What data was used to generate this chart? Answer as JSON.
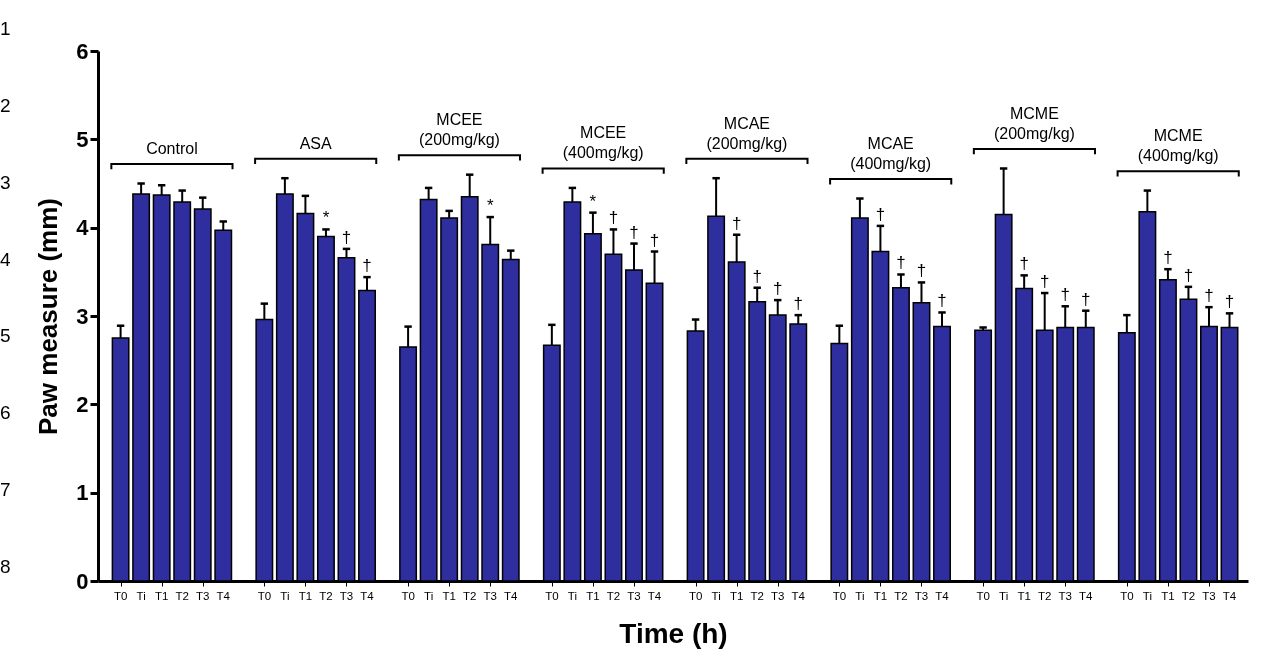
{
  "chart_data": {
    "type": "bar",
    "xlabel": "Time (h)",
    "ylabel": "Paw measure (mm)",
    "ylim": [
      0,
      6
    ],
    "yticks": [
      0,
      1,
      2,
      3,
      4,
      5,
      6
    ],
    "categories": [
      "Control",
      "ASA",
      "MCEE (200mg/kg)",
      "MCEE (400mg/kg)",
      "MCAE (200mg/kg)",
      "MCAE (400mg/kg)",
      "MCME (200mg/kg)",
      "MCME (400mg/kg)"
    ],
    "series": [
      {
        "name": "T0",
        "color": "#2e2e9e",
        "values": [
          2.75,
          2.96,
          2.65,
          2.67,
          2.83,
          2.69,
          2.84,
          2.81
        ],
        "errors": [
          [
            2.75,
            2.89
          ],
          [
            2.96,
            3.14
          ],
          [
            2.65,
            2.88
          ],
          [
            2.67,
            2.9
          ],
          [
            2.83,
            2.96
          ],
          [
            2.69,
            2.89
          ],
          [
            2.84,
            2.87
          ],
          [
            2.81,
            3.01
          ]
        ],
        "value_labels": [
          null,
          null,
          null,
          null,
          null,
          null,
          null,
          null
        ]
      },
      {
        "name": "Ti",
        "color": "#2e2e9e",
        "values": [
          4.38,
          4.38,
          4.32,
          4.29,
          4.13,
          4.11,
          4.15,
          4.18
        ],
        "errors": [
          [
            4.38,
            4.5
          ],
          [
            4.38,
            4.56
          ],
          [
            4.32,
            4.45
          ],
          [
            4.29,
            4.45
          ],
          [
            4.13,
            4.56
          ],
          [
            4.11,
            4.33
          ],
          [
            4.15,
            4.67
          ],
          [
            4.18,
            4.42
          ]
        ],
        "value_labels": [
          null,
          null,
          null,
          null,
          null,
          null,
          null,
          null
        ]
      },
      {
        "name": "T1",
        "color": "#2e2e9e",
        "values": [
          4.37,
          4.16,
          4.11,
          3.93,
          3.61,
          3.73,
          3.31,
          3.41
        ],
        "errors": [
          [
            4.37,
            4.48
          ],
          [
            4.16,
            4.36
          ],
          [
            4.11,
            4.19
          ],
          [
            3.93,
            4.17
          ],
          [
            3.61,
            3.92
          ],
          [
            3.73,
            4.02
          ],
          [
            3.31,
            3.46
          ],
          [
            3.41,
            3.53
          ]
        ],
        "value_labels": [
          null,
          null,
          null,
          "*",
          "†",
          "†",
          "†",
          "†"
        ]
      },
      {
        "name": "T2",
        "color": "#2e2e9e",
        "values": [
          4.29,
          3.9,
          4.35,
          3.7,
          3.16,
          3.32,
          2.84,
          3.19
        ],
        "errors": [
          [
            4.29,
            4.42
          ],
          [
            3.9,
            3.98
          ],
          [
            4.35,
            4.6
          ],
          [
            3.7,
            3.98
          ],
          [
            3.16,
            3.32
          ],
          [
            3.32,
            3.47
          ],
          [
            2.84,
            3.26
          ],
          [
            3.19,
            3.33
          ]
        ],
        "value_labels": [
          null,
          "*",
          null,
          "†",
          "†",
          "†",
          "†",
          "†"
        ]
      },
      {
        "name": "T3",
        "color": "#2e2e9e",
        "values": [
          4.21,
          3.66,
          3.81,
          3.52,
          3.01,
          3.15,
          2.87,
          2.88
        ],
        "errors": [
          [
            4.21,
            4.34
          ],
          [
            3.66,
            3.76
          ],
          [
            3.81,
            4.12
          ],
          [
            3.52,
            3.82
          ],
          [
            3.01,
            3.18
          ],
          [
            3.15,
            3.38
          ],
          [
            2.87,
            3.11
          ],
          [
            2.88,
            3.1
          ]
        ],
        "value_labels": [
          null,
          "†",
          "*",
          "†",
          "†",
          "†",
          "†",
          "†"
        ]
      },
      {
        "name": "T4",
        "color": "#2e2e9e",
        "values": [
          3.97,
          3.29,
          3.64,
          3.37,
          2.91,
          2.88,
          2.87,
          2.87
        ],
        "errors": [
          [
            3.97,
            4.07
          ],
          [
            3.29,
            3.44
          ],
          [
            3.64,
            3.74
          ],
          [
            3.37,
            3.73
          ],
          [
            2.91,
            3.01
          ],
          [
            2.88,
            3.04
          ],
          [
            2.87,
            3.06
          ],
          [
            2.87,
            3.03
          ]
        ],
        "value_labels": [
          null,
          "†",
          null,
          "†",
          "†",
          "†",
          "†",
          "†"
        ]
      }
    ],
    "legend": "bottom",
    "annotations": [
      "1",
      "2",
      "3",
      "4",
      "5",
      "6",
      "7",
      "8"
    ]
  }
}
